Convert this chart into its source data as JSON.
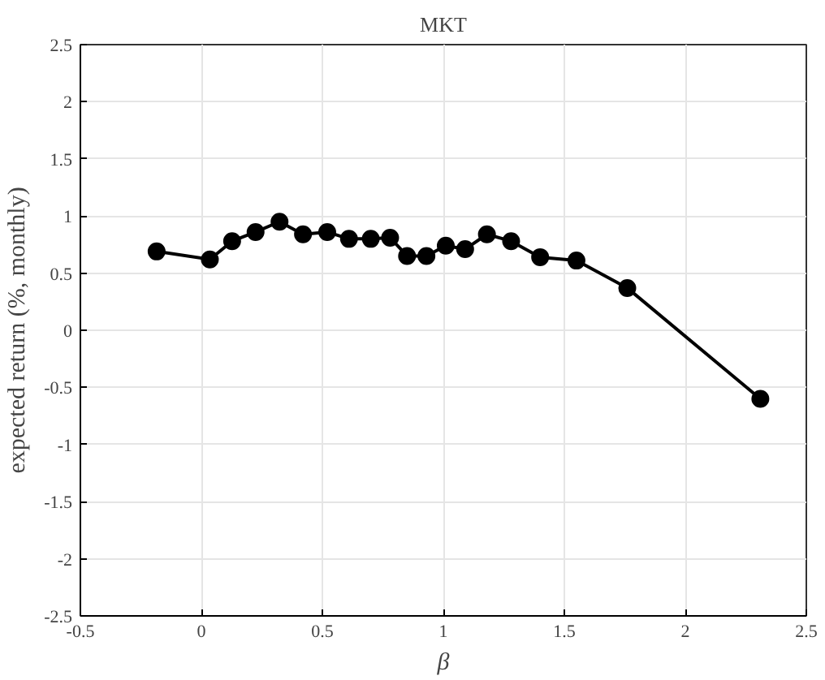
{
  "chart_data": {
    "type": "line",
    "title": "MKT",
    "xlabel": "β",
    "ylabel": "expected return (%, monthly)",
    "xlim": [
      -0.5,
      2.5
    ],
    "ylim": [
      -2.5,
      2.5
    ],
    "xticks": [
      -0.5,
      0,
      0.5,
      1,
      1.5,
      2,
      2.5
    ],
    "yticks": [
      -2.5,
      -2,
      -1.5,
      -1,
      -0.5,
      0,
      0.5,
      1,
      1.5,
      2,
      2.5
    ],
    "grid": true,
    "marker": "circle",
    "line_style": "solid",
    "series": [
      {
        "color": "#000000",
        "x": [
          -0.185,
          0.035,
          0.127,
          0.224,
          0.323,
          0.42,
          0.52,
          0.61,
          0.7,
          0.78,
          0.85,
          0.93,
          1.01,
          1.09,
          1.18,
          1.28,
          1.4,
          1.55,
          1.76,
          2.31
        ],
        "values": [
          0.69,
          0.62,
          0.78,
          0.86,
          0.95,
          0.84,
          0.86,
          0.8,
          0.8,
          0.81,
          0.65,
          0.65,
          0.74,
          0.71,
          0.84,
          0.78,
          0.64,
          0.61,
          0.37,
          -0.6
        ]
      }
    ]
  }
}
